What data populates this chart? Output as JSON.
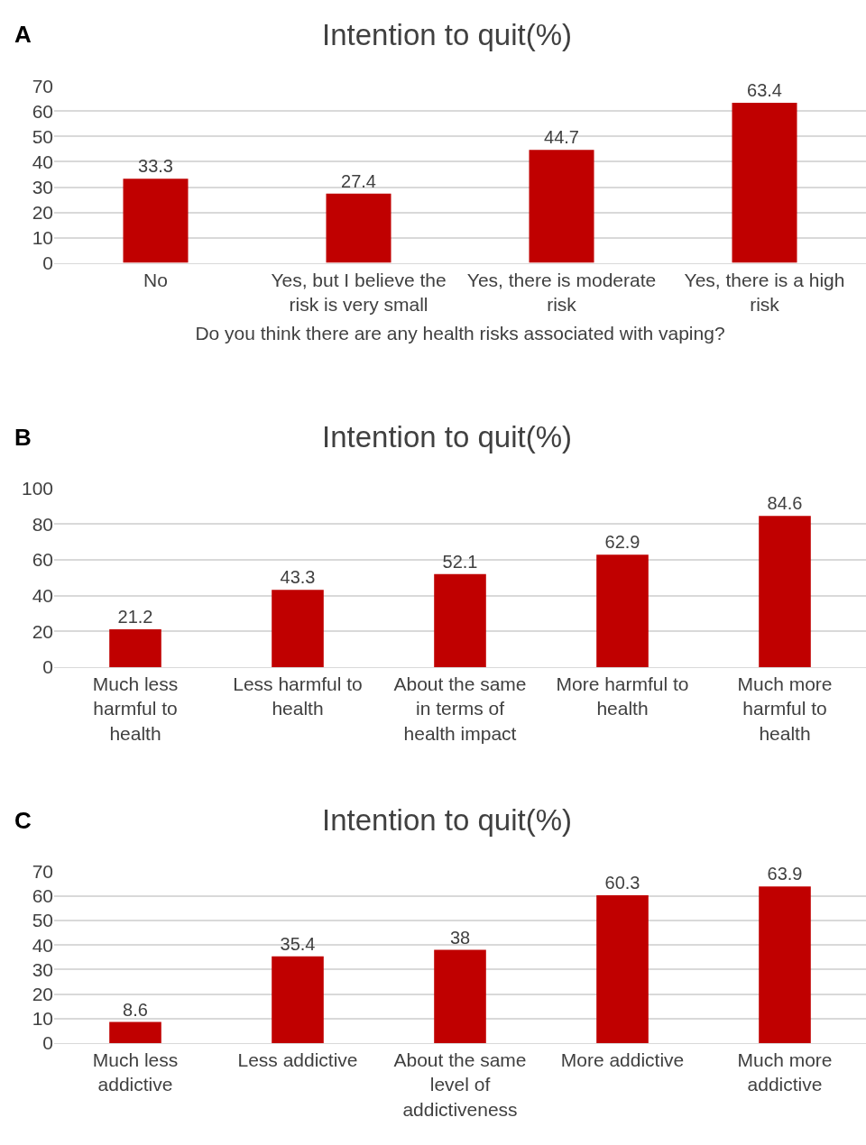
{
  "chart_data": [
    {
      "type": "bar",
      "title": "Intention to quit(%)",
      "xlabel": "Do you think there are any health risks associated with vaping?",
      "annotations": [
        "A"
      ],
      "categories": [
        "No",
        "Yes, but I believe the risk is very small",
        "Yes, there is moderate risk",
        "Yes, there is a high risk"
      ],
      "values": [
        33.3,
        27.4,
        44.7,
        63.4
      ],
      "color": "#c00000",
      "ylim": [
        0,
        70
      ],
      "yticks": [
        0,
        10,
        20,
        30,
        40,
        50,
        60,
        70
      ],
      "grid": "y",
      "data_labels": true
    },
    {
      "type": "bar",
      "title": "Intention to quit(%)",
      "annotations": [
        "B"
      ],
      "categories": [
        "Much less harmful to health",
        "Less harmful to health",
        "About the same in terms of health impact",
        "More harmful to health",
        "Much more harmful to health"
      ],
      "values": [
        21.2,
        43.3,
        52.1,
        62.9,
        84.6
      ],
      "color": "#c00000",
      "ylim": [
        0,
        100
      ],
      "yticks": [
        0,
        20,
        40,
        60,
        80,
        100
      ],
      "grid": "y",
      "data_labels": true
    },
    {
      "type": "bar",
      "title": "Intention to quit(%)",
      "annotations": [
        "C"
      ],
      "categories": [
        "Much less addictive",
        "Less addictive",
        "About the same level of addictiveness",
        "More addictive",
        "Much more addictive"
      ],
      "values": [
        8.6,
        35.4,
        38,
        60.3,
        63.9
      ],
      "color": "#c00000",
      "ylim": [
        0,
        70
      ],
      "yticks": [
        0,
        10,
        20,
        30,
        40,
        50,
        60,
        70
      ],
      "grid": "y",
      "data_labels": true
    }
  ]
}
